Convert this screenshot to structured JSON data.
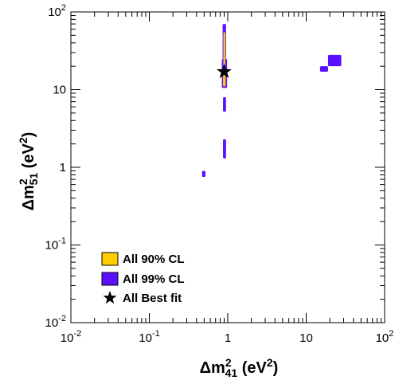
{
  "chart_data": {
    "type": "contour",
    "x_axis": {
      "label_base": "Δm",
      "label_sup": "2",
      "label_sub": "41",
      "label_unit_open": " (eV",
      "label_unit_sup": "2",
      "label_unit_close": ")",
      "scale": "log",
      "range": [
        0.01,
        100
      ],
      "ticks": [
        {
          "value": 0.01,
          "mant": "10",
          "exp": "-2"
        },
        {
          "value": 0.1,
          "mant": "10",
          "exp": "-1"
        },
        {
          "value": 1,
          "mant": "1",
          "exp": ""
        },
        {
          "value": 10,
          "mant": "10",
          "exp": ""
        },
        {
          "value": 100,
          "mant": "10",
          "exp": "2"
        }
      ]
    },
    "y_axis": {
      "label_base": "Δm",
      "label_sup": "2",
      "label_sub": "51",
      "label_unit_open": " (eV",
      "label_unit_sup": "2",
      "label_unit_close": ")",
      "scale": "log",
      "range": [
        0.01,
        100
      ],
      "ticks": [
        {
          "value": 0.01,
          "mant": "10",
          "exp": "-2"
        },
        {
          "value": 0.1,
          "mant": "10",
          "exp": "-1"
        },
        {
          "value": 1,
          "mant": "1",
          "exp": ""
        },
        {
          "value": 10,
          "mant": "10",
          "exp": ""
        },
        {
          "value": 100,
          "mant": "10",
          "exp": "2"
        }
      ]
    },
    "grid": false,
    "legend_position": "bottom-left",
    "legend": [
      {
        "label": "All 90% CL",
        "type": "box",
        "color": "#ffcc00"
      },
      {
        "label": "All 99% CL",
        "type": "box",
        "color": "#5a10ff"
      },
      {
        "label": "All Best fit",
        "type": "star",
        "color": "#000000"
      }
    ],
    "regions_99": [
      {
        "x": [
          0.86,
          0.95
        ],
        "y": [
          25,
          70
        ]
      },
      {
        "x": [
          0.84,
          0.98
        ],
        "y": [
          10.5,
          25
        ]
      },
      {
        "x": [
          0.87,
          0.95
        ],
        "y": [
          5.2,
          8
        ]
      },
      {
        "x": [
          0.87,
          0.95
        ],
        "y": [
          1.3,
          2.3
        ]
      },
      {
        "x": [
          0.47,
          0.52
        ],
        "y": [
          0.75,
          0.9
        ]
      },
      {
        "x": [
          15,
          19
        ],
        "y": [
          17,
          20
        ]
      },
      {
        "x": [
          19,
          28
        ],
        "y": [
          20,
          28
        ]
      }
    ],
    "regions_90": [
      {
        "x": [
          0.88,
          0.93
        ],
        "y": [
          20,
          55
        ]
      },
      {
        "x": [
          0.87,
          0.94
        ],
        "y": [
          11,
          18
        ]
      }
    ],
    "best_fit": {
      "x": 0.9,
      "y": 17
    }
  }
}
